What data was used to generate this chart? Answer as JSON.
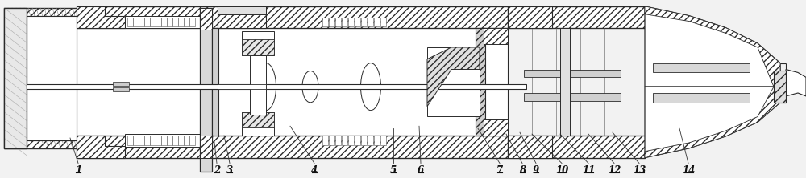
{
  "bg_color": "#f2f2f2",
  "lc": "#2a2a2a",
  "lw_main": 1.0,
  "lw_med": 0.7,
  "lw_thin": 0.5,
  "hatch_color": "#888888",
  "label_data": [
    {
      "label": "1",
      "arrow_from": [
        87,
        175
      ],
      "arrow_to": [
        97,
        207
      ]
    },
    {
      "label": "2",
      "arrow_from": [
        265,
        172
      ],
      "arrow_to": [
        269,
        207
      ]
    },
    {
      "label": "3",
      "arrow_from": [
        278,
        172
      ],
      "arrow_to": [
        285,
        207
      ]
    },
    {
      "label": "4",
      "arrow_from": [
        360,
        160
      ],
      "arrow_to": [
        390,
        207
      ]
    },
    {
      "label": "5",
      "arrow_from": [
        488,
        163
      ],
      "arrow_to": [
        488,
        207
      ]
    },
    {
      "label": "6",
      "arrow_from": [
        520,
        160
      ],
      "arrow_to": [
        522,
        207
      ]
    },
    {
      "label": "7",
      "arrow_from": [
        593,
        163
      ],
      "arrow_to": [
        620,
        207
      ]
    },
    {
      "label": "8",
      "arrow_from": [
        628,
        170
      ],
      "arrow_to": [
        648,
        207
      ]
    },
    {
      "label": "9",
      "arrow_from": [
        645,
        168
      ],
      "arrow_to": [
        665,
        207
      ]
    },
    {
      "label": "10",
      "arrow_from": [
        660,
        170
      ],
      "arrow_to": [
        697,
        207
      ]
    },
    {
      "label": "11",
      "arrow_from": [
        695,
        170
      ],
      "arrow_to": [
        730,
        207
      ]
    },
    {
      "label": "12",
      "arrow_from": [
        730,
        170
      ],
      "arrow_to": [
        762,
        207
      ]
    },
    {
      "label": "13",
      "arrow_from": [
        760,
        168
      ],
      "arrow_to": [
        793,
        207
      ]
    },
    {
      "label": "14",
      "arrow_from": [
        843,
        163
      ],
      "arrow_to": [
        854,
        207
      ]
    }
  ]
}
